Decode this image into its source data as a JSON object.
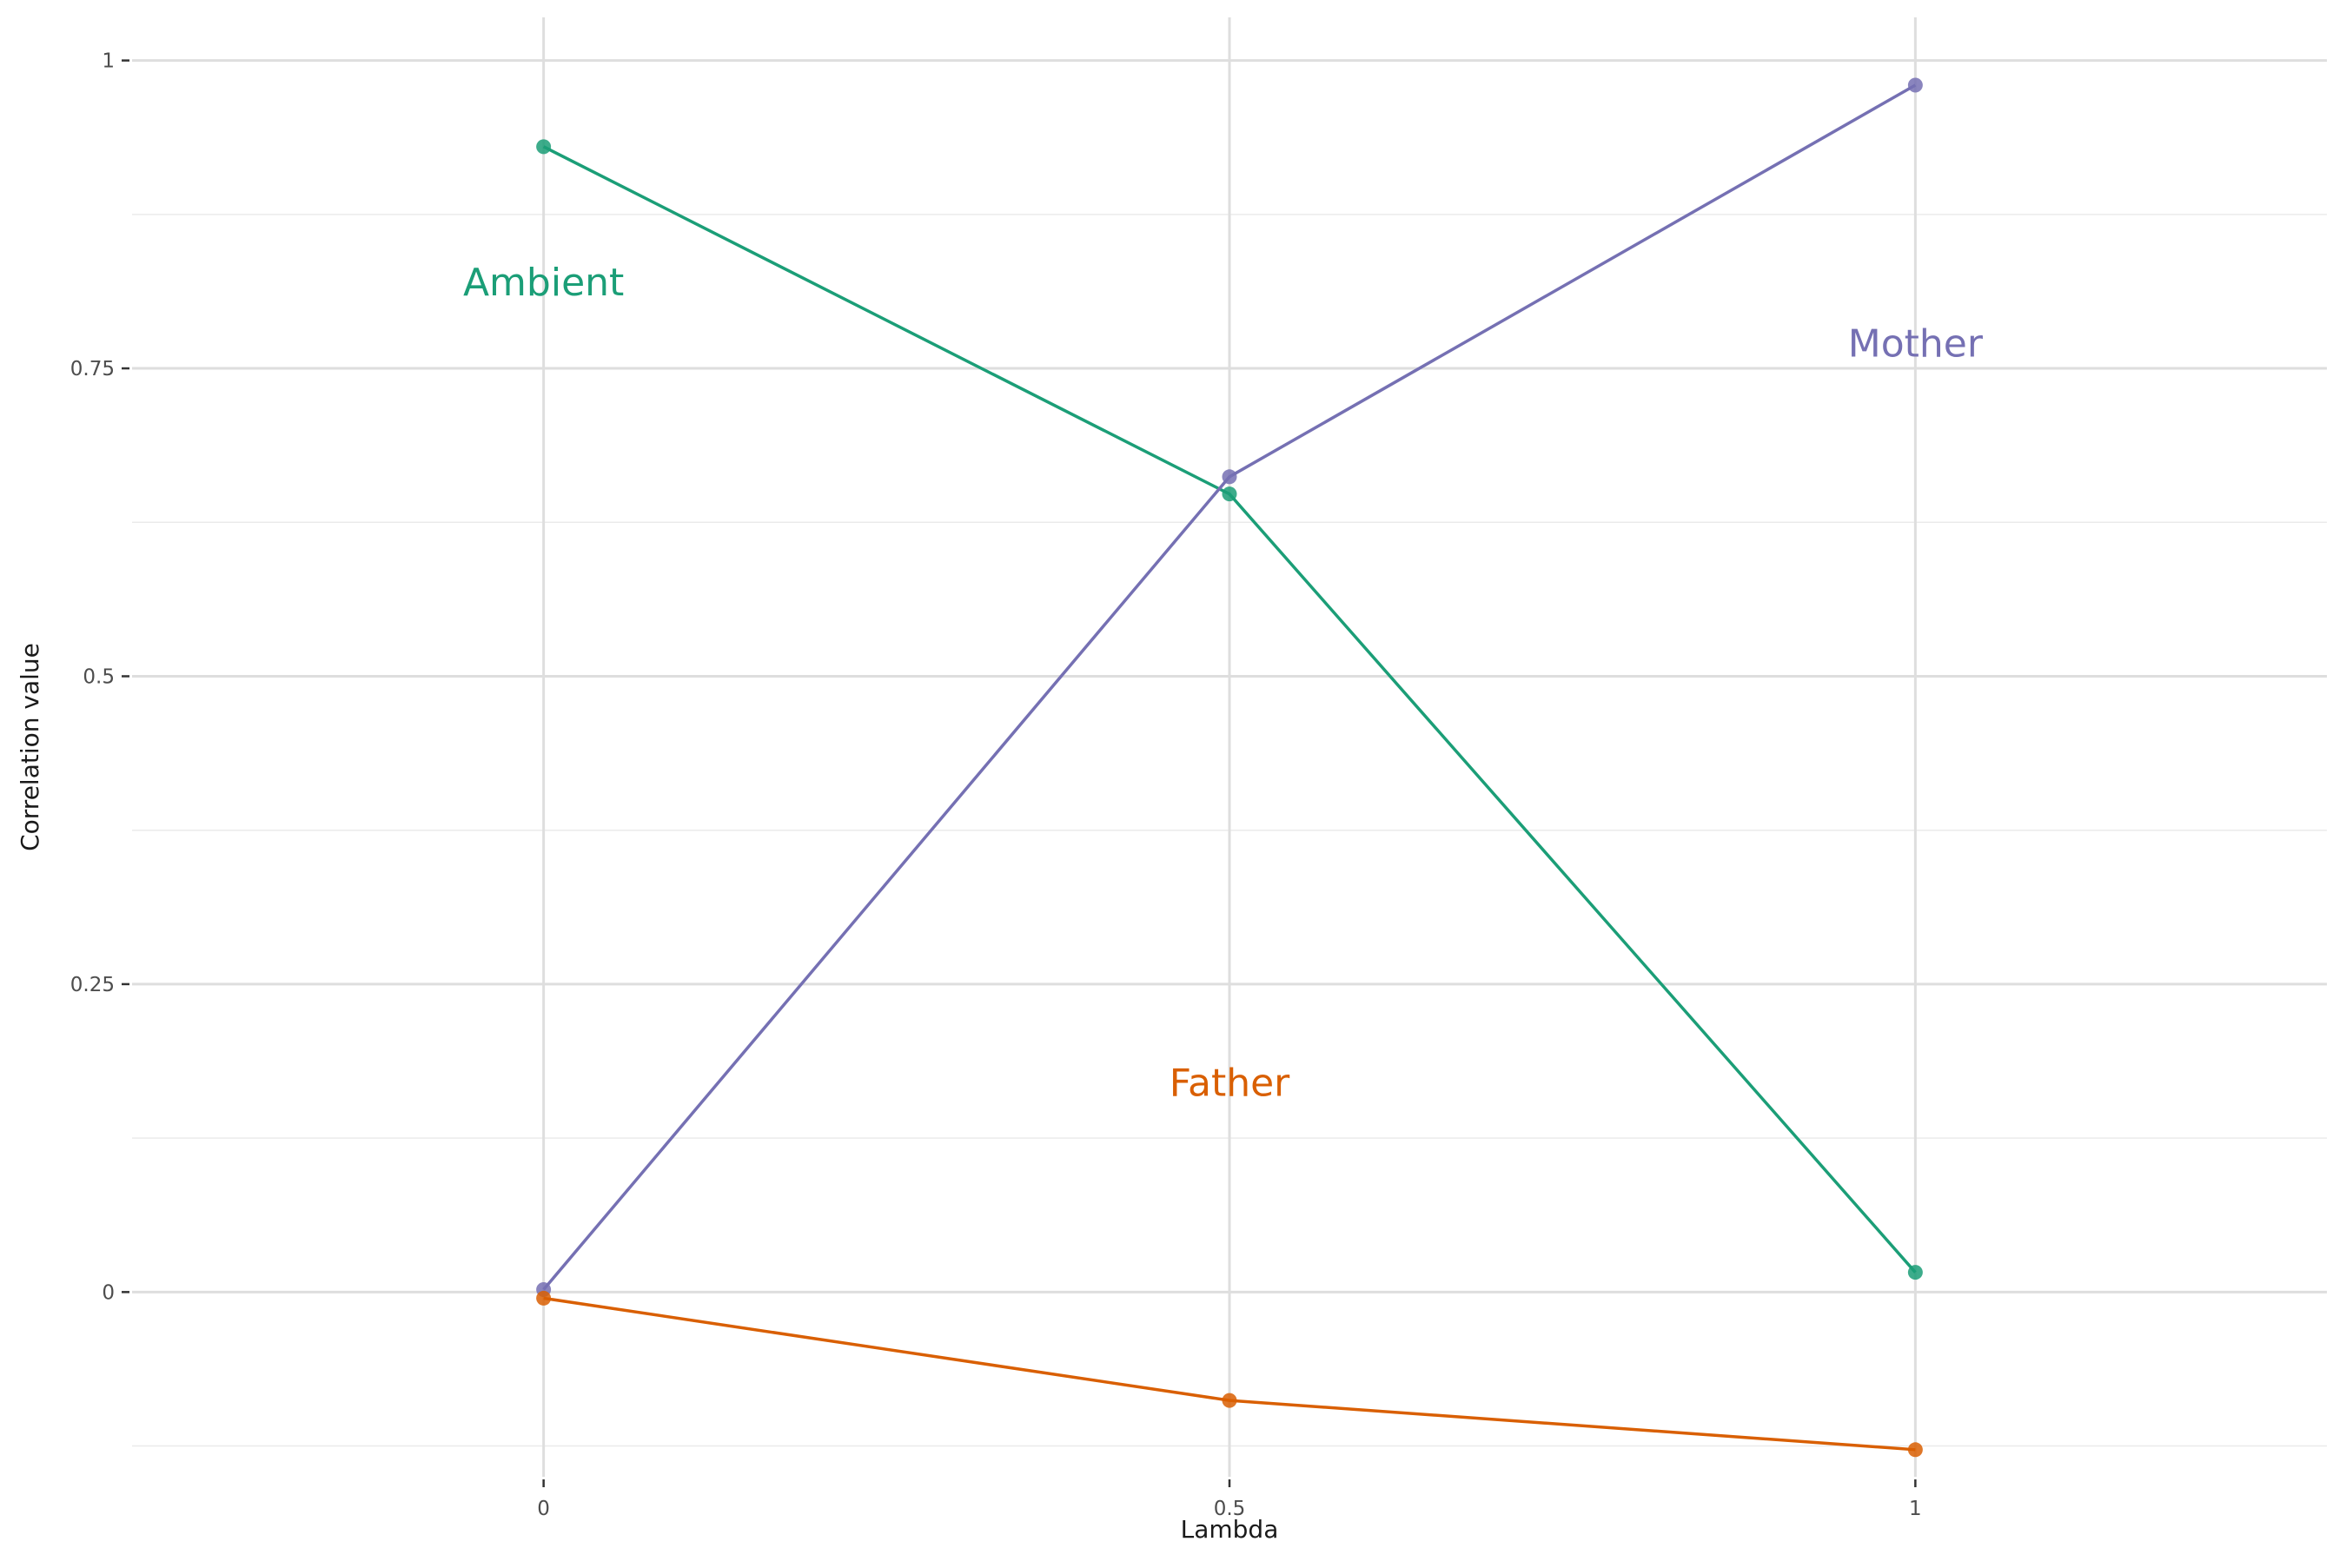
{
  "chart_data": {
    "type": "line",
    "title": "",
    "xlabel": "Lambda",
    "ylabel": "Correlation value",
    "x": [
      0,
      0.5,
      1
    ],
    "x_tick_labels": [
      "0",
      "0.5",
      "1"
    ],
    "y_ticks": [
      0,
      0.25,
      0.5,
      0.75,
      1
    ],
    "y_tick_labels": [
      "0",
      "0.25",
      "0.5",
      "0.75",
      "1"
    ],
    "xlim": [
      -0.3,
      1.3
    ],
    "ylim": [
      -0.15,
      1.035
    ],
    "grid": true,
    "legend": "none",
    "series": [
      {
        "name": "Ambient",
        "color": "#1b9e77",
        "values": [
          0.93,
          0.648,
          0.016
        ],
        "label": {
          "text": "Ambient",
          "x": 0,
          "y": 0.82
        }
      },
      {
        "name": "Mother",
        "color": "#7570b3",
        "values": [
          0.002,
          0.662,
          0.98
        ],
        "label": {
          "text": "Mother",
          "x": 1,
          "y": 0.77
        }
      },
      {
        "name": "Father",
        "color": "#d95f02",
        "values": [
          -0.005,
          -0.088,
          -0.128
        ],
        "label": {
          "text": "Father",
          "x": 0.5,
          "y": 0.17
        }
      }
    ]
  }
}
